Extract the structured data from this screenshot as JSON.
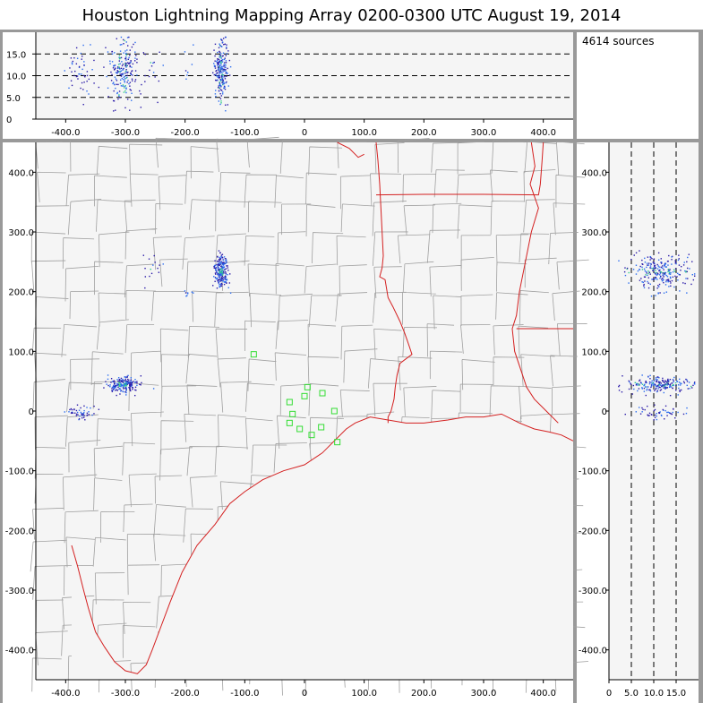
{
  "title": "Houston Lightning Mapping Array   0200-0300 UTC  August 19, 2014",
  "source_count": "4614 sources",
  "colors": {
    "background": "#ffffff",
    "panel_border": "#999999",
    "plot_bg": "#f5f5f5",
    "county_lines": "#a0a0a0",
    "state_lines": "#d42020",
    "coast": "#d42020",
    "stations": "#33dd33",
    "sources_low": "#2a1aa8",
    "sources_mid": "#2a6cf0",
    "sources_high": "#33cc88",
    "dashed_ref": "#000000"
  },
  "chart_data": [
    {
      "id": "plan-view",
      "type": "scatter",
      "xlim": [
        -450,
        450
      ],
      "ylim": [
        -450,
        450
      ],
      "x_ticks": [
        -400,
        -300,
        -200,
        -100,
        0,
        100,
        200,
        300,
        400
      ],
      "x_tick_labels": [
        "-400.0",
        "-300.0",
        "-200.0",
        "-100.0",
        "0",
        "100.0",
        "200.0",
        "300.0",
        "400.0"
      ],
      "y_ticks": [
        -400,
        -300,
        -200,
        -100,
        0,
        100,
        200,
        300,
        400
      ],
      "y_tick_labels": [
        "-400.0",
        "-300.0",
        "-200.0",
        "-100.0",
        "0",
        "100.0",
        "200.0",
        "300.0",
        "400.0"
      ],
      "source_clusters": [
        {
          "x": -140,
          "y": 235,
          "sx": 6,
          "sy": 12,
          "n": 220
        },
        {
          "x": -305,
          "y": 45,
          "sx": 12,
          "sy": 7,
          "n": 200
        },
        {
          "x": -375,
          "y": 0,
          "sx": 12,
          "sy": 6,
          "n": 50
        },
        {
          "x": -255,
          "y": 240,
          "sx": 10,
          "sy": 14,
          "n": 15
        },
        {
          "x": -195,
          "y": 197,
          "sx": 4,
          "sy": 4,
          "n": 8
        }
      ],
      "stations": [
        {
          "x": -85,
          "y": 95
        },
        {
          "x": 5,
          "y": 40
        },
        {
          "x": 30,
          "y": 30
        },
        {
          "x": -25,
          "y": 15
        },
        {
          "x": 0,
          "y": 25
        },
        {
          "x": -20,
          "y": -5
        },
        {
          "x": 50,
          "y": 0
        },
        {
          "x": -25,
          "y": -20
        },
        {
          "x": -8,
          "y": -30
        },
        {
          "x": 28,
          "y": -27
        },
        {
          "x": 12,
          "y": -40
        },
        {
          "x": 55,
          "y": -52
        }
      ],
      "state_borders": [
        [
          [
            120,
            450
          ],
          [
            123,
            420
          ],
          [
            126,
            380
          ],
          [
            128,
            340
          ],
          [
            130,
            300
          ],
          [
            132,
            260
          ],
          [
            130,
            240
          ],
          [
            126,
            225
          ],
          [
            135,
            220
          ],
          [
            140,
            190
          ],
          [
            148,
            175
          ],
          [
            160,
            150
          ],
          [
            168,
            130
          ],
          [
            175,
            110
          ],
          [
            180,
            95
          ],
          [
            160,
            80
          ],
          [
            155,
            60
          ],
          [
            152,
            40
          ],
          [
            150,
            20
          ],
          [
            145,
            0
          ],
          [
            140,
            -10
          ],
          [
            140,
            -20
          ]
        ],
        [
          [
            120,
            362
          ],
          [
            200,
            363
          ],
          [
            300,
            363
          ],
          [
            392,
            362
          ],
          [
            395,
            380
          ],
          [
            398,
            420
          ],
          [
            400,
            450
          ]
        ],
        [
          [
            355,
            138
          ],
          [
            450,
            138
          ]
        ],
        [
          [
            55,
            450
          ],
          [
            75,
            440
          ],
          [
            90,
            425
          ],
          [
            100,
            430
          ]
        ]
      ],
      "coastline": [
        [
          -390,
          -225
        ],
        [
          -380,
          -260
        ],
        [
          -370,
          -300
        ],
        [
          -362,
          -330
        ],
        [
          -350,
          -370
        ],
        [
          -335,
          -395
        ],
        [
          -318,
          -420
        ],
        [
          -300,
          -435
        ],
        [
          -280,
          -440
        ],
        [
          -265,
          -425
        ],
        [
          -255,
          -400
        ],
        [
          -240,
          -360
        ],
        [
          -225,
          -320
        ],
        [
          -205,
          -270
        ],
        [
          -180,
          -225
        ],
        [
          -150,
          -190
        ],
        [
          -125,
          -155
        ],
        [
          -100,
          -135
        ],
        [
          -70,
          -115
        ],
        [
          -35,
          -100
        ],
        [
          0,
          -90
        ],
        [
          30,
          -70
        ],
        [
          50,
          -50
        ],
        [
          70,
          -30
        ],
        [
          85,
          -20
        ],
        [
          110,
          -10
        ],
        [
          140,
          -15
        ],
        [
          170,
          -20
        ],
        [
          200,
          -20
        ],
        [
          240,
          -15
        ],
        [
          270,
          -10
        ],
        [
          300,
          -10
        ],
        [
          330,
          -5
        ],
        [
          360,
          -20
        ],
        [
          385,
          -30
        ],
        [
          410,
          -35
        ],
        [
          430,
          -40
        ],
        [
          450,
          -50
        ]
      ],
      "mississippi": [
        [
          380,
          450
        ],
        [
          386,
          410
        ],
        [
          378,
          380
        ],
        [
          392,
          340
        ],
        [
          380,
          300
        ],
        [
          370,
          250
        ],
        [
          360,
          200
        ],
        [
          355,
          160
        ],
        [
          348,
          138
        ],
        [
          352,
          100
        ],
        [
          362,
          70
        ],
        [
          372,
          40
        ],
        [
          385,
          20
        ],
        [
          405,
          0
        ],
        [
          425,
          -20
        ]
      ]
    },
    {
      "id": "alt-vs-x",
      "type": "scatter",
      "xlim": [
        -450,
        450
      ],
      "ylim": [
        0,
        20
      ],
      "x_ticks": [
        -400,
        -300,
        -200,
        -100,
        0,
        100,
        200,
        300,
        400
      ],
      "x_tick_labels": [
        "-400.0",
        "-300.0",
        "-200.0",
        "-100.0",
        "0",
        "100.0",
        "200.0",
        "300.0",
        "400.0"
      ],
      "y_ticks": [
        0,
        5,
        10,
        15
      ],
      "y_tick_labels": [
        "0",
        "5.0",
        "10.0",
        "15.0"
      ],
      "reference_lines": [
        5,
        10,
        15
      ]
    },
    {
      "id": "alt-vs-y",
      "type": "scatter",
      "xlim": [
        0,
        20
      ],
      "ylim": [
        -450,
        450
      ],
      "x_ticks": [
        0,
        5,
        10,
        15
      ],
      "x_tick_labels": [
        "0",
        "5.0",
        "10.0",
        "15.0"
      ],
      "y_ticks": [
        -400,
        -300,
        -200,
        -100,
        0,
        100,
        200,
        300,
        400
      ],
      "y_tick_labels": [
        "-400.0",
        "-300.0",
        "-200.0",
        "-100.0",
        "0",
        "100.0",
        "200.0",
        "300.0",
        "400.0"
      ],
      "reference_lines": [
        5,
        10,
        15
      ]
    }
  ]
}
